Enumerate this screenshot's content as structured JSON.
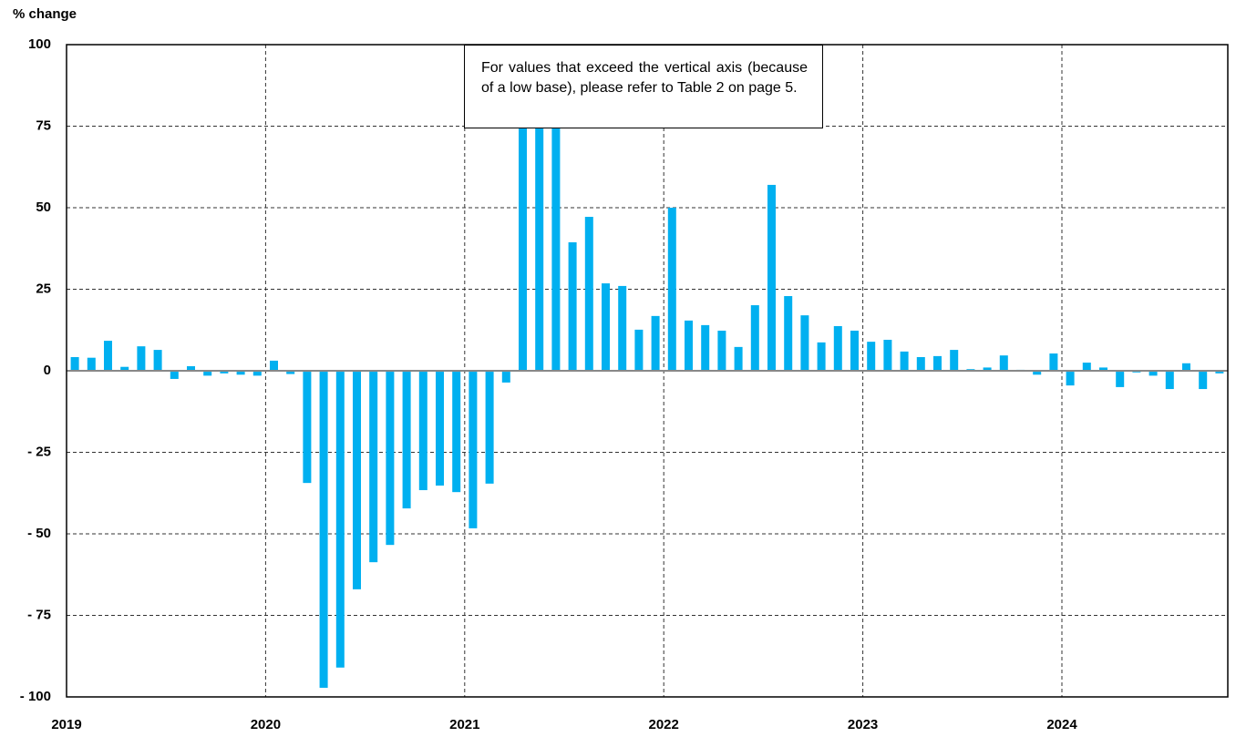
{
  "chart_data": {
    "type": "bar",
    "y_label": "% change",
    "annotation": "For values that exceed the vertical axis (because of a low base), please refer to Table 2 on page 5.",
    "categories": [
      "2019",
      null,
      null,
      null,
      null,
      null,
      null,
      null,
      null,
      null,
      null,
      null,
      "2020",
      null,
      null,
      null,
      null,
      null,
      null,
      null,
      null,
      null,
      null,
      null,
      "2021",
      null,
      null,
      null,
      null,
      null,
      null,
      null,
      null,
      null,
      null,
      null,
      "2022",
      null,
      null,
      null,
      null,
      null,
      null,
      null,
      null,
      null,
      null,
      null,
      "2023",
      null,
      null,
      null,
      null,
      null,
      null,
      null,
      null,
      null,
      null,
      null,
      "2024",
      null,
      null,
      null,
      null,
      null,
      null,
      null,
      null,
      null
    ],
    "values": [
      4.2,
      4,
      9.2,
      1.2,
      7.5,
      6.4,
      -2.5,
      1.4,
      -1.5,
      -0.8,
      -1.2,
      -1.5,
      3.1,
      -1,
      -34.4,
      -97.2,
      -91,
      -67,
      -58.7,
      -53.4,
      -42.2,
      -36.6,
      -35.2,
      -37.2,
      -48.3,
      -34.6,
      -3.6,
      100,
      100,
      100,
      39.4,
      47.2,
      26.8,
      26,
      12.6,
      16.8,
      50,
      15.4,
      14,
      12.3,
      7.3,
      20.1,
      57,
      22.9,
      17,
      8.7,
      13.7,
      12.3,
      8.9,
      9.5,
      5.9,
      4.2,
      4.5,
      6.4,
      0.5,
      1,
      4.7,
      0.3,
      -1.2,
      5.3,
      -4.5,
      2.5,
      1,
      -5,
      -0.5,
      -1.5,
      -5.6,
      2.3,
      -5.6,
      -0.8
    ],
    "color": "#00b0f0",
    "ylim": [
      -100,
      100
    ],
    "yticks": [
      {
        "value": -100,
        "label": "- 100"
      },
      {
        "value": -75,
        "label": "- 75"
      },
      {
        "value": -50,
        "label": "- 50"
      },
      {
        "value": -25,
        "label": "- 25"
      },
      0,
      25,
      50,
      75,
      100
    ],
    "grid": true
  }
}
